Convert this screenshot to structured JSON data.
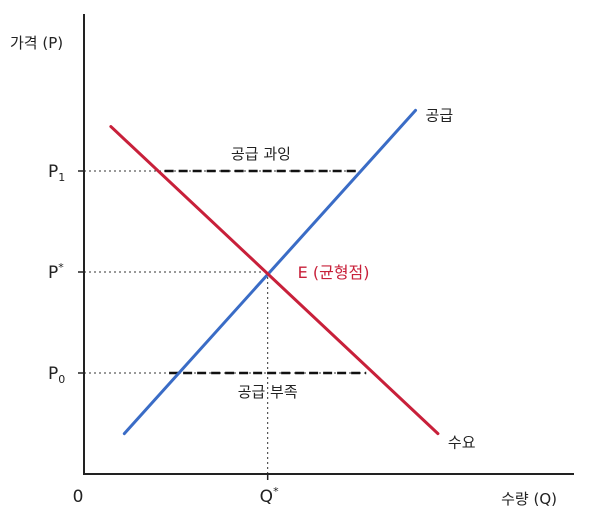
{
  "chart_data": {
    "type": "line",
    "title": "",
    "xlabel": "수량 (Q)",
    "ylabel": "가격 (P)",
    "origin_label": "0",
    "xlim": [
      0,
      10
    ],
    "ylim": [
      0,
      10
    ],
    "grid": false,
    "series": [
      {
        "name": "공급",
        "color": "#3a6cc6",
        "points": [
          [
            0.9,
            1.0
          ],
          [
            7.4,
            9.0
          ]
        ]
      },
      {
        "name": "수요",
        "color": "#c8203a",
        "points": [
          [
            0.6,
            8.6
          ],
          [
            7.9,
            1.0
          ]
        ]
      }
    ],
    "price_levels": [
      {
        "key": "p1",
        "base": "P",
        "sub": "1",
        "value": 7.5
      },
      {
        "key": "pstar",
        "base": "P",
        "sup": "*",
        "value": 5.0
      },
      {
        "key": "p0",
        "base": "P",
        "sub": "0",
        "value": 2.5
      }
    ],
    "quantity_levels": [
      {
        "key": "qstar",
        "base": "Q",
        "sup": "*",
        "value": 4.1
      }
    ],
    "equilibrium": {
      "label": "E (균형점)",
      "x": 4.1,
      "y": 5.0,
      "color": "#c8203a"
    },
    "gaps": [
      {
        "label": "공급 과잉",
        "y": 7.5,
        "x_from": 1.8,
        "x_to": 6.1,
        "label_pos": "above"
      },
      {
        "label": "공급 부족",
        "y": 2.5,
        "x_from": 1.9,
        "x_to": 6.3,
        "label_pos": "below"
      }
    ]
  }
}
